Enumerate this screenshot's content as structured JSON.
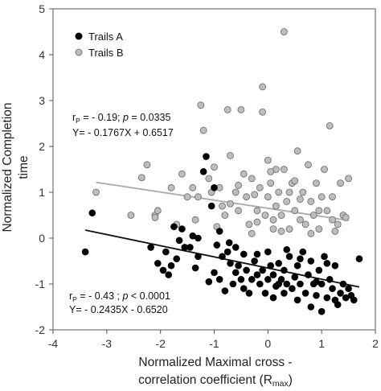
{
  "chart_data": {
    "type": "scatter",
    "xlabel_line1": "Normalized Maximal cross -",
    "xlabel_line2_main": "correlation coefficient (R",
    "xlabel_line2_sub": "max",
    "xlabel_line2_end": ")",
    "ylabel_line1": "Normalized Completion",
    "ylabel_line2": "time",
    "xlim": [
      -4,
      2
    ],
    "ylim": [
      -2,
      5
    ],
    "x_ticks": [
      "-4",
      "-3",
      "-2",
      "-1",
      "0",
      "1",
      "2"
    ],
    "y_ticks": [
      "-2",
      "-1",
      "0",
      "1",
      "2",
      "3",
      "4",
      "5"
    ],
    "grid": false,
    "legend_position": "top-left",
    "colors": {
      "trails_a": "#000000",
      "trails_b": "#bdbdbd",
      "line_a": "#111111",
      "line_b": "#a9a9a9"
    },
    "series": [
      {
        "name": "Trails A",
        "fit": {
          "slope": -0.2435,
          "intercept": -0.652
        },
        "points": [
          [
            -3.4,
            -0.3
          ],
          [
            -3.27,
            0.55
          ],
          [
            -2.18,
            -0.2
          ],
          [
            -2.05,
            -0.55
          ],
          [
            -1.95,
            -0.7
          ],
          [
            -1.9,
            -0.3
          ],
          [
            -1.85,
            -0.8
          ],
          [
            -1.8,
            -0.6
          ],
          [
            -1.75,
            0.25
          ],
          [
            -1.7,
            -0.45
          ],
          [
            -1.6,
            0.2
          ],
          [
            -1.55,
            -0.2
          ],
          [
            -1.45,
            -0.2
          ],
          [
            -1.4,
            0.05
          ],
          [
            -1.35,
            -0.65
          ],
          [
            -1.3,
            0.0
          ],
          [
            -1.2,
            1.45
          ],
          [
            -1.15,
            1.78
          ],
          [
            -1.1,
            -0.95
          ],
          [
            -1.05,
            0.7
          ],
          [
            -1.0,
            -0.75
          ],
          [
            -1.0,
            1.1
          ],
          [
            -0.95,
            -0.15
          ],
          [
            -0.9,
            -0.9
          ],
          [
            -0.85,
            -0.4
          ],
          [
            -0.8,
            -1.15
          ],
          [
            -0.75,
            -0.3
          ],
          [
            -0.72,
            -0.1
          ],
          [
            -0.7,
            -0.55
          ],
          [
            -0.65,
            -1.0
          ],
          [
            -0.6,
            -0.2
          ],
          [
            -0.55,
            -0.6
          ],
          [
            -0.5,
            -0.9
          ],
          [
            -0.45,
            -1.1
          ],
          [
            -0.45,
            -0.35
          ],
          [
            -0.4,
            -0.7
          ],
          [
            -0.35,
            -1.2
          ],
          [
            -0.3,
            -0.9
          ],
          [
            -0.25,
            -0.5
          ],
          [
            -0.2,
            -0.8
          ],
          [
            -0.15,
            -1.0
          ],
          [
            -0.1,
            -0.7
          ],
          [
            -0.05,
            -1.2
          ],
          [
            0.0,
            -0.9
          ],
          [
            0.0,
            -0.3
          ],
          [
            0.05,
            -0.6
          ],
          [
            0.1,
            -1.3
          ],
          [
            0.1,
            -0.8
          ],
          [
            0.15,
            -1.05
          ],
          [
            0.2,
            -0.55
          ],
          [
            0.25,
            -0.9
          ],
          [
            0.3,
            -1.2
          ],
          [
            0.3,
            -0.7
          ],
          [
            0.35,
            -1.0
          ],
          [
            0.4,
            -0.4
          ],
          [
            0.45,
            -1.1
          ],
          [
            0.5,
            -0.85
          ],
          [
            0.55,
            -1.35
          ],
          [
            0.55,
            -0.6
          ],
          [
            0.6,
            -1.0
          ],
          [
            0.65,
            -0.3
          ],
          [
            0.7,
            -1.2
          ],
          [
            0.75,
            -0.8
          ],
          [
            0.8,
            -1.5
          ],
          [
            0.8,
            -0.5
          ],
          [
            0.85,
            -1.0
          ],
          [
            0.9,
            -1.25
          ],
          [
            0.95,
            -0.7
          ],
          [
            1.0,
            -1.6
          ],
          [
            1.0,
            -1.0
          ],
          [
            1.05,
            -0.4
          ],
          [
            1.1,
            -1.3
          ],
          [
            1.15,
            -0.9
          ],
          [
            1.2,
            -1.1
          ],
          [
            1.25,
            -0.6
          ],
          [
            1.3,
            -1.45
          ],
          [
            1.35,
            -1.2
          ],
          [
            1.4,
            -1.0
          ],
          [
            1.45,
            -1.3
          ],
          [
            1.5,
            -1.1
          ],
          [
            1.55,
            -1.25
          ],
          [
            1.6,
            -1.35
          ],
          [
            1.7,
            -0.45
          ],
          [
            -1.65,
            -0.05
          ],
          [
            -0.9,
            0.15
          ],
          [
            -0.6,
            -0.75
          ],
          [
            0.2,
            -1.0
          ],
          [
            0.6,
            -0.45
          ],
          [
            1.1,
            -0.55
          ],
          [
            -1.3,
            -0.4
          ],
          [
            -0.2,
            -0.35
          ],
          [
            0.35,
            -0.25
          ],
          [
            0.9,
            -0.95
          ],
          [
            1.25,
            -1.35
          ]
        ]
      },
      {
        "name": "Trails B",
        "fit": {
          "slope": -0.1767,
          "intercept": 0.6517
        },
        "points": [
          [
            -3.2,
            1.0
          ],
          [
            -2.55,
            0.5
          ],
          [
            -2.35,
            1.32
          ],
          [
            -2.25,
            1.6
          ],
          [
            -2.1,
            0.5
          ],
          [
            -2.05,
            0.6
          ],
          [
            -1.8,
            1.1
          ],
          [
            -1.6,
            1.4
          ],
          [
            -1.5,
            0.9
          ],
          [
            -1.4,
            1.1
          ],
          [
            -1.35,
            0.4
          ],
          [
            -1.25,
            2.9
          ],
          [
            -1.2,
            2.35
          ],
          [
            -1.1,
            1.3
          ],
          [
            -1.05,
            1.0
          ],
          [
            -1.0,
            1.55
          ],
          [
            -0.9,
            1.1
          ],
          [
            -0.85,
            0.7
          ],
          [
            -0.8,
            0.5
          ],
          [
            -0.75,
            2.8
          ],
          [
            -0.7,
            1.8
          ],
          [
            -0.6,
            1.0
          ],
          [
            -0.55,
            0.6
          ],
          [
            -0.5,
            2.8
          ],
          [
            -0.45,
            1.4
          ],
          [
            -0.4,
            0.9
          ],
          [
            -0.35,
            0.3
          ],
          [
            -0.3,
            1.3
          ],
          [
            -0.25,
            0.95
          ],
          [
            -0.2,
            0.6
          ],
          [
            -0.15,
            1.1
          ],
          [
            -0.1,
            3.3
          ],
          [
            -0.1,
            2.75
          ],
          [
            -0.05,
            0.5
          ],
          [
            0.0,
            0.9
          ],
          [
            0.0,
            1.7
          ],
          [
            0.05,
            1.2
          ],
          [
            0.1,
            0.4
          ],
          [
            0.15,
            0.7
          ],
          [
            0.15,
            1.5
          ],
          [
            0.2,
            1.0
          ],
          [
            0.25,
            0.5
          ],
          [
            0.3,
            4.5
          ],
          [
            0.3,
            1.5
          ],
          [
            0.35,
            0.8
          ],
          [
            0.4,
            0.2
          ],
          [
            0.45,
            1.2
          ],
          [
            0.5,
            0.6
          ],
          [
            0.55,
            1.9
          ],
          [
            0.6,
            0.4
          ],
          [
            0.65,
            1.0
          ],
          [
            0.7,
            0.3
          ],
          [
            0.75,
            1.6
          ],
          [
            0.8,
            0.8
          ],
          [
            0.85,
            0.5
          ],
          [
            0.9,
            1.2
          ],
          [
            0.95,
            0.2
          ],
          [
            1.0,
            0.9
          ],
          [
            1.05,
            1.5
          ],
          [
            1.1,
            0.6
          ],
          [
            1.15,
            2.45
          ],
          [
            1.2,
            0.9
          ],
          [
            1.3,
            0.3
          ],
          [
            1.35,
            1.2
          ],
          [
            1.4,
            0.5
          ],
          [
            1.5,
            1.3
          ],
          [
            -2.1,
            0.45
          ],
          [
            -1.3,
            0.9
          ],
          [
            -0.7,
            0.75
          ],
          [
            -0.3,
            0.1
          ],
          [
            0.1,
            0.2
          ],
          [
            0.5,
            1.25
          ],
          [
            0.8,
            0.1
          ],
          [
            1.2,
            0.4
          ],
          [
            -0.95,
            0.25
          ],
          [
            -0.55,
            1.15
          ],
          [
            -0.2,
            0.35
          ],
          [
            0.25,
            0.15
          ],
          [
            0.6,
            0.85
          ],
          [
            0.95,
            0.6
          ],
          [
            1.25,
            0.15
          ],
          [
            1.45,
            0.45
          ],
          [
            -1.7,
            0.3
          ],
          [
            0.05,
            1.45
          ],
          [
            0.4,
            1.0
          ]
        ]
      }
    ],
    "annotations": [
      {
        "line1_r": "r",
        "line1_sub": "P",
        "line1_rest": " = - 0.19; ",
        "line1_p": "p",
        "line1_end": " = 0.0335",
        "line2": "Y= - 0.1767X + 0.6517"
      },
      {
        "line1_r": "r",
        "line1_sub": "P",
        "line1_rest": " = - 0.43 ; ",
        "line1_p": "p",
        "line1_end": " < 0.0001",
        "line2": "Y= - 0.2435X - 0.6520"
      }
    ]
  }
}
